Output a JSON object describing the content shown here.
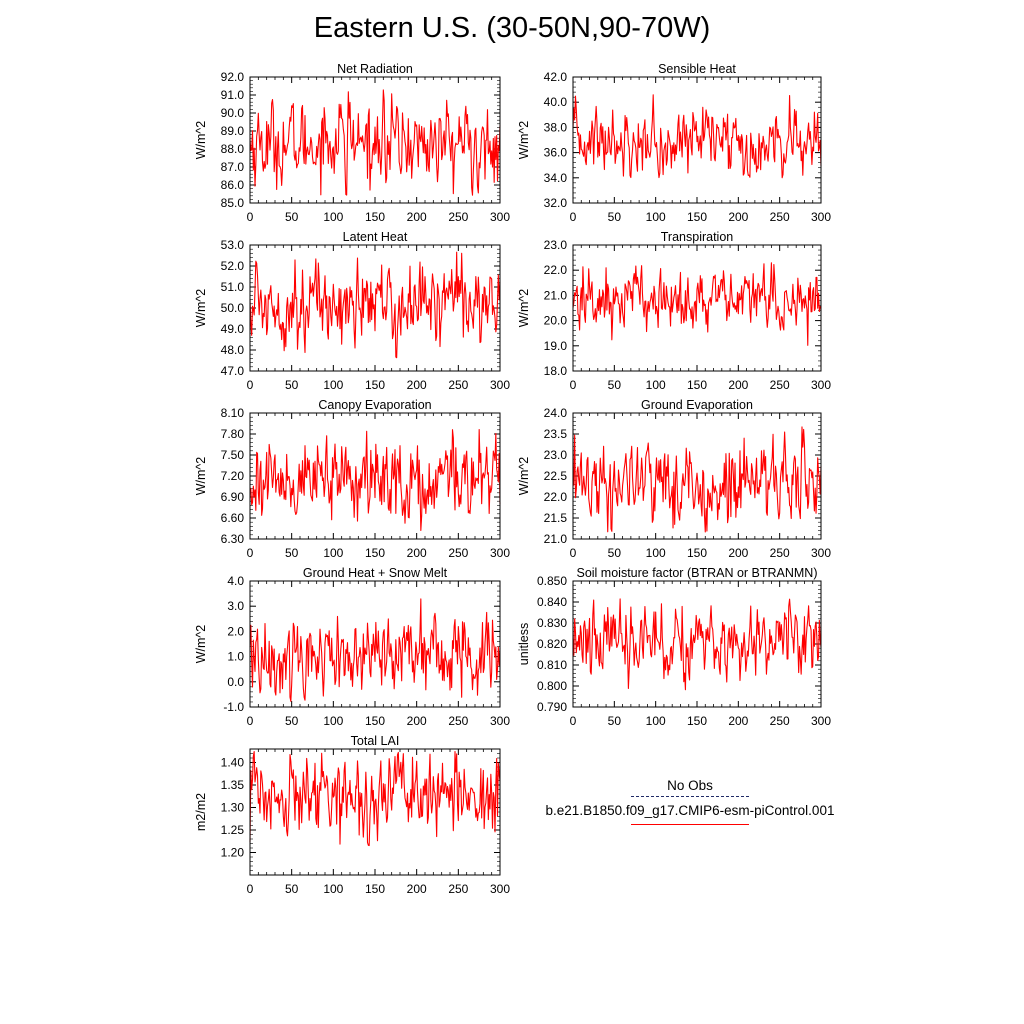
{
  "title": "Eastern U.S. (30-50N,90-70W)",
  "legend": {
    "entries": [
      {
        "label": "No Obs",
        "style": "dashed",
        "color": "#1f2a66"
      },
      {
        "label": "b.e21.B1850.f09_g17.CMIP6-esm-piControl.001",
        "style": "solid",
        "color": "#ff0000"
      }
    ]
  },
  "colors": {
    "series": "#ff0000",
    "axes": "#000000"
  },
  "chart_data": [
    {
      "type": "line",
      "title": "Net Radiation",
      "ylabel": "W/m^2",
      "xlim": [
        0,
        300
      ],
      "ylim": [
        85.0,
        92.0
      ],
      "xticks": [
        "0",
        "50",
        "100",
        "150",
        "200",
        "250",
        "300"
      ],
      "yticks": [
        "85.0",
        "86.0",
        "87.0",
        "88.0",
        "89.0",
        "90.0",
        "91.0",
        "92.0"
      ],
      "series": [
        {
          "color": "#ff0000",
          "n": 301,
          "mean": 88.3,
          "min": 85.4,
          "max": 91.3
        }
      ]
    },
    {
      "type": "line",
      "title": "Sensible Heat",
      "ylabel": "W/m^2",
      "xlim": [
        0,
        300
      ],
      "ylim": [
        32.0,
        42.0
      ],
      "xticks": [
        "0",
        "50",
        "100",
        "150",
        "200",
        "250",
        "300"
      ],
      "yticks": [
        "32.0",
        "34.0",
        "36.0",
        "38.0",
        "40.0",
        "42.0"
      ],
      "series": [
        {
          "color": "#ff0000",
          "n": 301,
          "mean": 37.0,
          "min": 34.0,
          "max": 40.9
        }
      ]
    },
    {
      "type": "line",
      "title": "Latent Heat",
      "ylabel": "W/m^2",
      "xlim": [
        0,
        300
      ],
      "ylim": [
        47.0,
        53.0
      ],
      "xticks": [
        "0",
        "50",
        "100",
        "150",
        "200",
        "250",
        "300"
      ],
      "yticks": [
        "47.0",
        "48.0",
        "49.0",
        "50.0",
        "51.0",
        "52.0",
        "53.0"
      ],
      "series": [
        {
          "color": "#ff0000",
          "n": 301,
          "mean": 50.2,
          "min": 47.6,
          "max": 52.7
        }
      ]
    },
    {
      "type": "line",
      "title": "Transpiration",
      "ylabel": "W/m^2",
      "xlim": [
        0,
        300
      ],
      "ylim": [
        18.0,
        23.0
      ],
      "xticks": [
        "0",
        "50",
        "100",
        "150",
        "200",
        "250",
        "300"
      ],
      "yticks": [
        "18.0",
        "19.0",
        "20.0",
        "21.0",
        "22.0",
        "23.0"
      ],
      "series": [
        {
          "color": "#ff0000",
          "n": 301,
          "mean": 20.8,
          "min": 19.0,
          "max": 22.3
        }
      ]
    },
    {
      "type": "line",
      "title": "Canopy Evaporation",
      "ylabel": "W/m^2",
      "xlim": [
        0,
        300
      ],
      "ylim": [
        6.3,
        8.1
      ],
      "xticks": [
        "0",
        "50",
        "100",
        "150",
        "200",
        "250",
        "300"
      ],
      "yticks": [
        "6.30",
        "6.60",
        "6.90",
        "7.20",
        "7.50",
        "7.80",
        "8.10"
      ],
      "series": [
        {
          "color": "#ff0000",
          "n": 301,
          "mean": 7.15,
          "min": 6.38,
          "max": 7.88
        }
      ]
    },
    {
      "type": "line",
      "title": "Ground Evaporation",
      "ylabel": "W/m^2",
      "xlim": [
        0,
        300
      ],
      "ylim": [
        21.0,
        24.0
      ],
      "xticks": [
        "0",
        "50",
        "100",
        "150",
        "200",
        "250",
        "300"
      ],
      "yticks": [
        "21.0",
        "21.5",
        "22.0",
        "22.5",
        "23.0",
        "23.5",
        "24.0"
      ],
      "series": [
        {
          "color": "#ff0000",
          "n": 301,
          "mean": 22.35,
          "min": 21.1,
          "max": 23.8
        }
      ]
    },
    {
      "type": "line",
      "title": "Ground Heat + Snow Melt",
      "ylabel": "W/m^2",
      "xlim": [
        0,
        300
      ],
      "ylim": [
        -1.0,
        4.0
      ],
      "xticks": [
        "0",
        "50",
        "100",
        "150",
        "200",
        "250",
        "300"
      ],
      "yticks": [
        "-1.0",
        "0.0",
        "1.0",
        "2.0",
        "3.0",
        "4.0"
      ],
      "series": [
        {
          "color": "#ff0000",
          "n": 301,
          "mean": 1.1,
          "min": -0.8,
          "max": 3.7
        }
      ]
    },
    {
      "type": "line",
      "title": "Soil moisture factor (BTRAN or BTRANMN)",
      "ylabel": "unitless",
      "xlim": [
        0,
        300
      ],
      "ylim": [
        0.79,
        0.85
      ],
      "xticks": [
        "0",
        "50",
        "100",
        "150",
        "200",
        "250",
        "300"
      ],
      "yticks": [
        "0.790",
        "0.800",
        "0.810",
        "0.820",
        "0.830",
        "0.840",
        "0.850"
      ],
      "series": [
        {
          "color": "#ff0000",
          "n": 301,
          "mean": 0.822,
          "min": 0.795,
          "max": 0.842
        }
      ]
    },
    {
      "type": "line",
      "title": "Total LAI",
      "ylabel": "m2/m2",
      "xlim": [
        0,
        300
      ],
      "ylim": [
        1.15,
        1.43
      ],
      "xticks": [
        "0",
        "50",
        "100",
        "150",
        "200",
        "250",
        "300"
      ],
      "yticks": [
        "1.20",
        "1.25",
        "1.30",
        "1.35",
        "1.40"
      ],
      "series": [
        {
          "color": "#ff0000",
          "n": 301,
          "mean": 1.33,
          "min": 1.18,
          "max": 1.425
        }
      ]
    }
  ]
}
